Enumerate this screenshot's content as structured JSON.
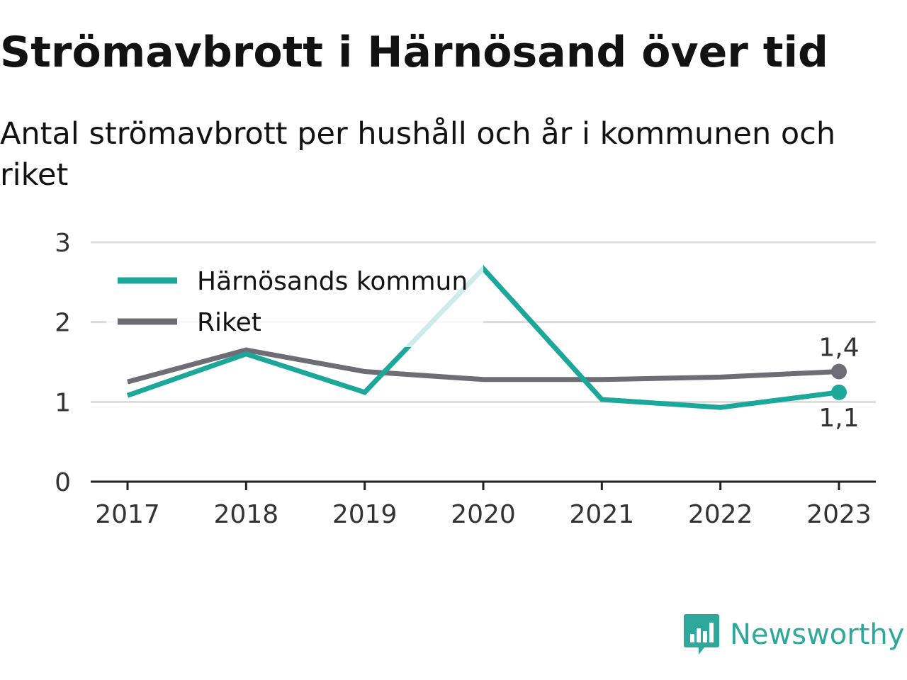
{
  "title": "Strömavbrott i Härnösand över tid",
  "subtitle": "Antal strömavbrott per hushåll och år i kommunen och riket",
  "brand": "Newsworthy",
  "colors": {
    "harnosand": "#1ba89a",
    "riket": "#6e6d75",
    "grid": "#dddddd",
    "axis": "#222222"
  },
  "chart_data": {
    "type": "line",
    "x": [
      "2017",
      "2018",
      "2019",
      "2020",
      "2021",
      "2022",
      "2023"
    ],
    "ylim": [
      0,
      3
    ],
    "yticks": [
      "0",
      "1",
      "2",
      "3"
    ],
    "grid": true,
    "legend_position": "top-left",
    "series": [
      {
        "name": "Härnösands kommun",
        "values": [
          1.08,
          1.6,
          1.12,
          2.67,
          1.03,
          0.93,
          1.12
        ],
        "end_label": "1,1",
        "end_label_position": "below"
      },
      {
        "name": "Riket",
        "values": [
          1.25,
          1.65,
          1.38,
          1.28,
          1.28,
          1.31,
          1.38
        ],
        "end_label": "1,4",
        "end_label_position": "above"
      }
    ]
  }
}
